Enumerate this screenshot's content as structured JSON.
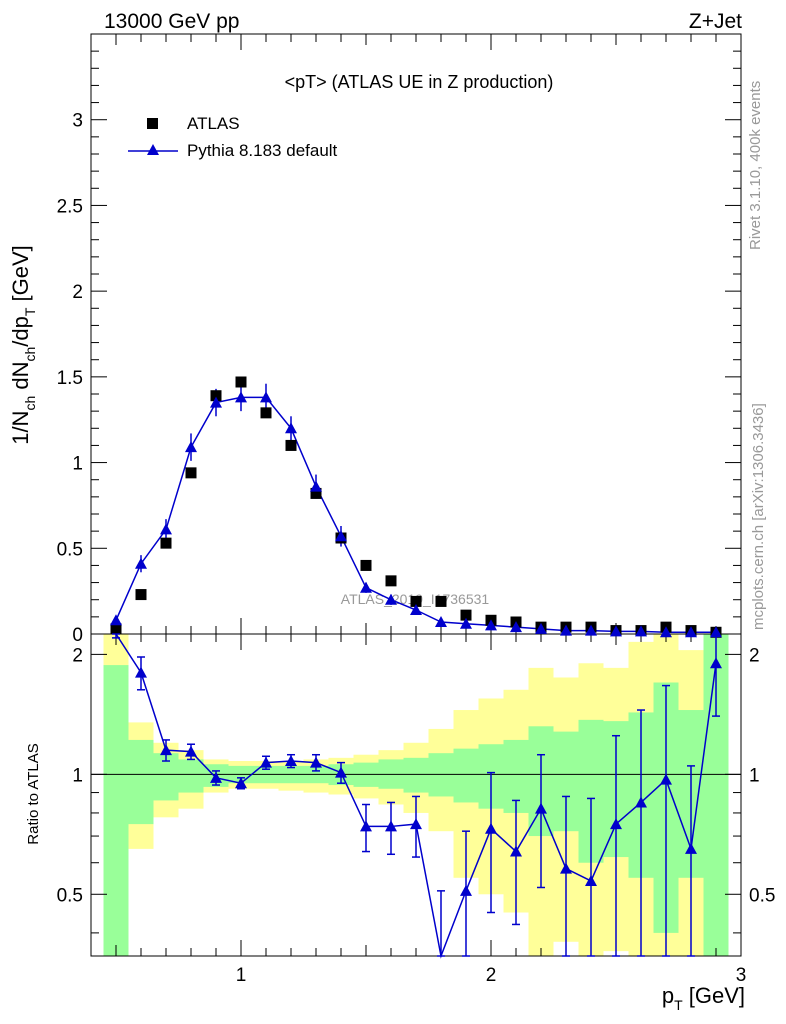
{
  "header": {
    "beam": "13000 GeV pp",
    "process": "Z+Jet"
  },
  "side_labels": {
    "rivet": "Rivet 3.1.10,  400k events",
    "mcplots": "mcplots.cern.ch [arXiv:1306.3436]"
  },
  "colors": {
    "mc_line": "#0000cc",
    "band_inner": "#99ff99",
    "band_outer": "#ffff99",
    "data_marker": "#000000"
  },
  "chart_data": [
    {
      "type": "scatter",
      "panel": "main",
      "title": "<pT> (ATLAS UE in Z production)",
      "watermark": "ATLAS_2019_I1736531",
      "xlabel": "p_T [GeV]",
      "ylabel": "1/N_ch dN_ch/dp_T [GeV]",
      "xlim": [
        0.4,
        3.0
      ],
      "ylim": [
        0,
        3.5
      ],
      "yticks": [
        0,
        0.5,
        1,
        1.5,
        2,
        2.5,
        3
      ],
      "ytick_labels": [
        "0",
        "0.5",
        "1",
        "1.5",
        "2",
        "2.5",
        "3"
      ],
      "legend": {
        "position": "top-left",
        "entries": [
          "ATLAS",
          "Pythia 8.183 default"
        ]
      },
      "x": [
        0.5,
        0.6,
        0.7,
        0.8,
        0.9,
        1.0,
        1.1,
        1.2,
        1.3,
        1.4,
        1.5,
        1.6,
        1.7,
        1.8,
        1.9,
        2.0,
        2.1,
        2.2,
        2.3,
        2.4,
        2.5,
        2.6,
        2.7,
        2.8,
        2.9
      ],
      "series": [
        {
          "name": "ATLAS",
          "marker": "square",
          "values": [
            0.03,
            0.23,
            0.53,
            0.94,
            1.39,
            1.47,
            1.29,
            1.1,
            0.82,
            0.56,
            0.4,
            0.31,
            0.19,
            0.19,
            0.11,
            0.08,
            0.07,
            0.04,
            0.04,
            0.04,
            0.02,
            0.02,
            0.04,
            0.02,
            0.01
          ]
        },
        {
          "name": "Pythia 8.183 default",
          "marker": "triangle",
          "values": [
            0.08,
            0.41,
            0.61,
            1.09,
            1.35,
            1.38,
            1.38,
            1.2,
            0.86,
            0.57,
            0.27,
            0.2,
            0.14,
            0.07,
            0.06,
            0.05,
            0.04,
            0.03,
            0.02,
            0.02,
            0.015,
            0.015,
            0.01,
            0.01,
            0.01
          ],
          "errors": [
            0.02,
            0.05,
            0.06,
            0.08,
            0.08,
            0.08,
            0.08,
            0.07,
            0.07,
            0.06,
            0.03,
            0.03,
            0.02,
            0.01,
            0.01,
            0.01,
            0.01,
            0.01,
            0.01,
            0.01,
            0.01,
            0.01,
            0.01,
            0.01,
            0.01
          ]
        }
      ]
    },
    {
      "type": "line",
      "panel": "ratio",
      "xlabel": "p_T [GeV]",
      "ylabel": "Ratio to ATLAS",
      "xlim": [
        0.4,
        3.0
      ],
      "ylim": [
        0.35,
        2.25
      ],
      "yticks": [
        0.5,
        1,
        2
      ],
      "ytick_labels": [
        "0.5",
        "1",
        "2"
      ],
      "xticks": [
        1,
        2,
        3
      ],
      "xtick_labels": [
        "1",
        "2",
        "3"
      ],
      "reference_line": 1,
      "bin_edges": [
        0.45,
        0.55,
        0.65,
        0.75,
        0.85,
        0.95,
        1.05,
        1.15,
        1.25,
        1.35,
        1.45,
        1.55,
        1.65,
        1.75,
        1.85,
        1.95,
        2.05,
        2.15,
        2.25,
        2.35,
        2.45,
        2.55,
        2.65,
        2.75,
        2.85,
        2.95
      ],
      "inner_band": [
        [
          0.35,
          1.88
        ],
        [
          0.75,
          1.22
        ],
        [
          0.86,
          1.13
        ],
        [
          0.9,
          1.09
        ],
        [
          0.93,
          1.06
        ],
        [
          0.95,
          1.05
        ],
        [
          0.95,
          1.05
        ],
        [
          0.95,
          1.05
        ],
        [
          0.95,
          1.05
        ],
        [
          0.94,
          1.06
        ],
        [
          0.93,
          1.07
        ],
        [
          0.92,
          1.09
        ],
        [
          0.9,
          1.1
        ],
        [
          0.88,
          1.13
        ],
        [
          0.85,
          1.16
        ],
        [
          0.82,
          1.19
        ],
        [
          0.8,
          1.22
        ],
        [
          0.7,
          1.32
        ],
        [
          0.72,
          1.28
        ],
        [
          0.6,
          1.37
        ],
        [
          0.62,
          1.36
        ],
        [
          0.55,
          1.43
        ],
        [
          0.4,
          1.7
        ],
        [
          0.55,
          1.45
        ],
        [
          0.35,
          2.25
        ]
      ],
      "outer_band": [
        [
          0.35,
          2.25
        ],
        [
          0.65,
          1.35
        ],
        [
          0.78,
          1.2
        ],
        [
          0.82,
          1.15
        ],
        [
          0.9,
          1.09
        ],
        [
          0.92,
          1.08
        ],
        [
          0.92,
          1.08
        ],
        [
          0.91,
          1.08
        ],
        [
          0.9,
          1.09
        ],
        [
          0.89,
          1.1
        ],
        [
          0.87,
          1.12
        ],
        [
          0.84,
          1.15
        ],
        [
          0.8,
          1.2
        ],
        [
          0.72,
          1.3
        ],
        [
          0.55,
          1.45
        ],
        [
          0.5,
          1.55
        ],
        [
          0.45,
          1.63
        ],
        [
          0.35,
          1.85
        ],
        [
          0.38,
          1.75
        ],
        [
          0.35,
          1.9
        ],
        [
          0.36,
          1.85
        ],
        [
          0.35,
          2.15
        ],
        [
          0.35,
          2.25
        ],
        [
          0.35,
          2.05
        ],
        [
          0.35,
          2.25
        ]
      ],
      "series": [
        {
          "name": "Pythia 8.183 default / ATLAS",
          "x": [
            0.5,
            0.6,
            0.7,
            0.8,
            0.9,
            1.0,
            1.1,
            1.2,
            1.3,
            1.4,
            1.5,
            1.6,
            1.7,
            1.8,
            1.9,
            2.0,
            2.1,
            2.2,
            2.3,
            2.4,
            2.5,
            2.6,
            2.7,
            2.8,
            2.9
          ],
          "values": [
            2.4,
            1.8,
            1.15,
            1.14,
            0.98,
            0.95,
            1.07,
            1.08,
            1.07,
            1.01,
            0.74,
            0.74,
            0.75,
            0.31,
            0.51,
            0.73,
            0.64,
            0.82,
            0.58,
            0.54,
            0.75,
            0.85,
            0.97,
            0.65,
            1.9
          ],
          "errors": [
            0.2,
            0.17,
            0.07,
            0.05,
            0.04,
            0.03,
            0.04,
            0.04,
            0.05,
            0.06,
            0.1,
            0.11,
            0.13,
            0.2,
            0.21,
            0.28,
            0.22,
            0.3,
            0.3,
            0.33,
            0.5,
            0.6,
            0.7,
            0.4,
            0.5
          ]
        }
      ]
    }
  ]
}
